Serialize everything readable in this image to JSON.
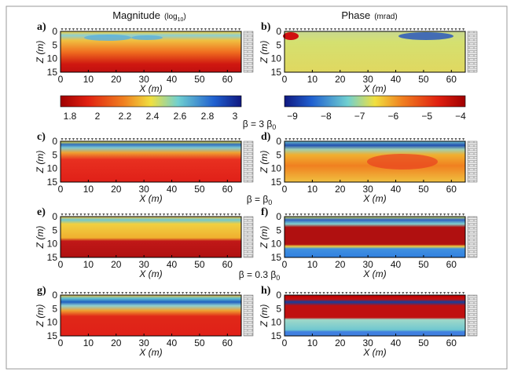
{
  "columns": [
    {
      "title": "Magnitude",
      "unit": [
        "(log",
        "10",
        ")"
      ]
    },
    {
      "title": "Phase",
      "unit": [
        "(mrad)"
      ]
    }
  ],
  "panels": [
    {
      "label": "a)"
    },
    {
      "label": "b)"
    },
    {
      "label": "c)"
    },
    {
      "label": "d)"
    },
    {
      "label": "e)"
    },
    {
      "label": "f)"
    },
    {
      "label": "g)"
    },
    {
      "label": "h)"
    }
  ],
  "axes": {
    "x_label": "X (m)",
    "z_label": "Z (m)",
    "xlim": [
      0,
      65
    ],
    "zlim": [
      0,
      15
    ],
    "xticks": [
      0,
      10,
      20,
      30,
      40,
      50,
      60
    ],
    "zticks": [
      0,
      5,
      10,
      15
    ]
  },
  "colorbars": [
    {
      "ticks": [
        "1.8",
        "2",
        "2.2",
        "2.4",
        "2.6",
        "2.8",
        "3"
      ]
    },
    {
      "ticks": [
        "−9",
        "−8",
        "−7",
        "−6",
        "−5",
        "−4"
      ]
    }
  ],
  "beta_labels": [
    [
      "β = 3 β",
      "0"
    ],
    [
      "β = β",
      "0"
    ],
    [
      "β = 0.3 β",
      "0"
    ]
  ]
}
